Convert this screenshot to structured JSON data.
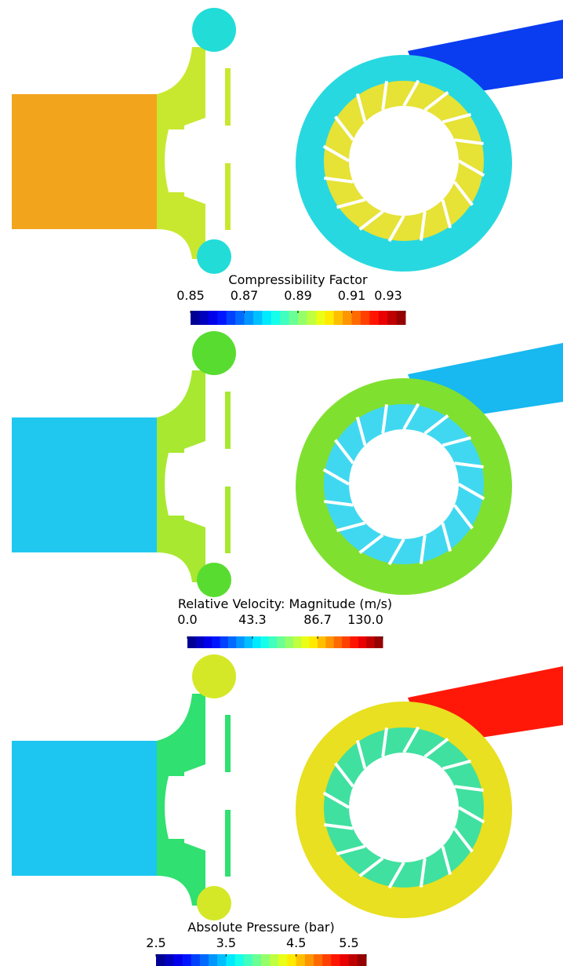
{
  "chart_data": [
    {
      "type": "contour",
      "title": "Compressibility Factor",
      "colormap": "jet",
      "clim": [
        0.85,
        0.93
      ],
      "cticks": [
        0.85,
        0.87,
        0.89,
        0.91,
        0.93
      ]
    },
    {
      "type": "contour",
      "title": "Relative Velocity: Magnitude (m/s)",
      "colormap": "jet",
      "clim": [
        0,
        130
      ],
      "cticks": [
        {
          "value": 0,
          "label": "0.0"
        },
        {
          "value": 43.3,
          "label": "43.3"
        },
        {
          "value": 86.7,
          "label": "86.7"
        },
        {
          "value": 130,
          "label": "130.0"
        }
      ]
    },
    {
      "type": "contour",
      "title": "Absolute Pressure (bar)",
      "colormap": "jet",
      "clim": [
        2.5,
        5.5
      ],
      "cticks": [
        2.5,
        3.5,
        4.5,
        5.5
      ]
    }
  ]
}
